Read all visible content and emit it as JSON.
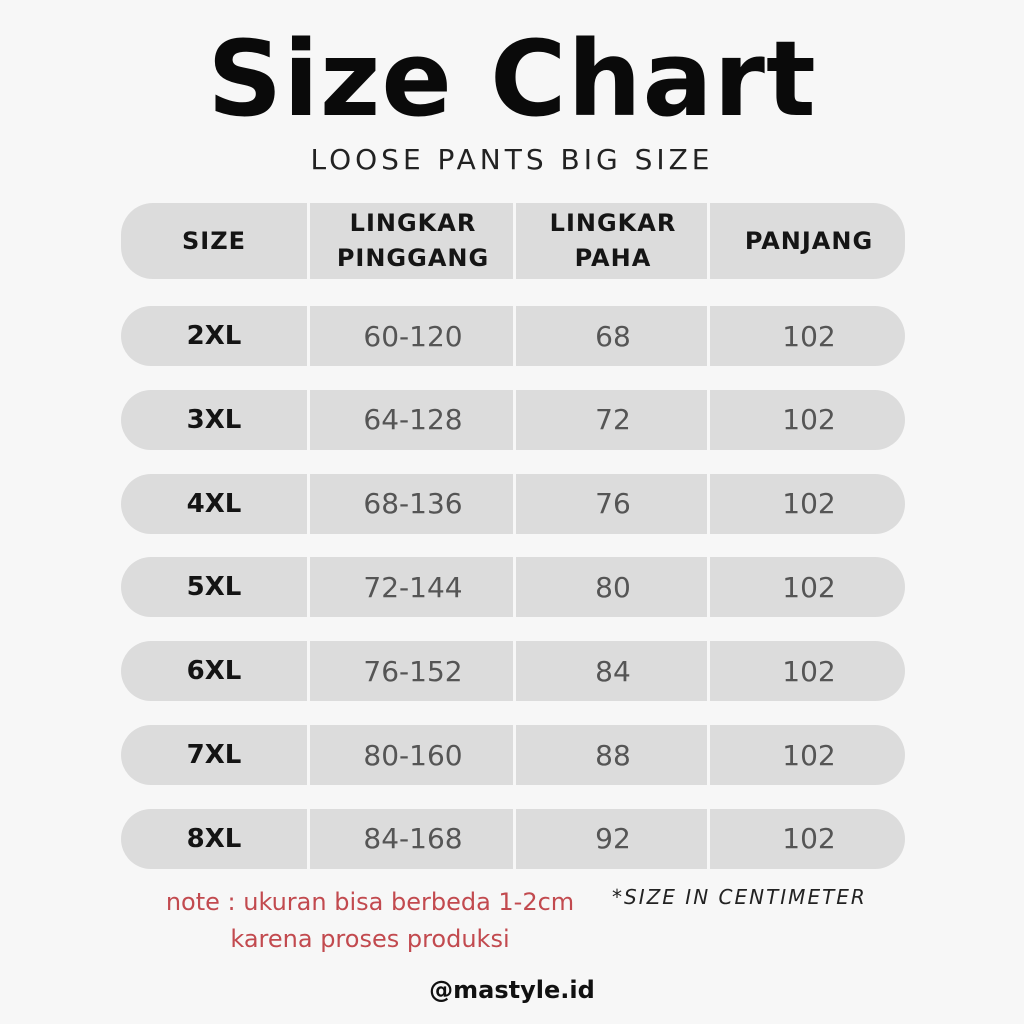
{
  "title": "Size Chart",
  "subtitle": "LOOSE PANTS BIG SIZE",
  "chart_data": {
    "type": "table",
    "columns": [
      "SIZE",
      "LINGKAR\nPINGGANG",
      "LINGKAR\nPAHA",
      "PANJANG"
    ],
    "rows": [
      [
        "2XL",
        "60-120",
        "68",
        "102"
      ],
      [
        "3XL",
        "64-128",
        "72",
        "102"
      ],
      [
        "4XL",
        "68-136",
        "76",
        "102"
      ],
      [
        "5XL",
        "72-144",
        "80",
        "102"
      ],
      [
        "6XL",
        "76-152",
        "84",
        "102"
      ],
      [
        "7XL",
        "80-160",
        "88",
        "102"
      ],
      [
        "8XL",
        "84-168",
        "92",
        "102"
      ]
    ]
  },
  "note_line1": "note : ukuran bisa berbeda 1-2cm",
  "note_line2": "karena proses produksi",
  "unit_note": "*SIZE IN CENTIMETER",
  "handle": "@mastyle.id"
}
